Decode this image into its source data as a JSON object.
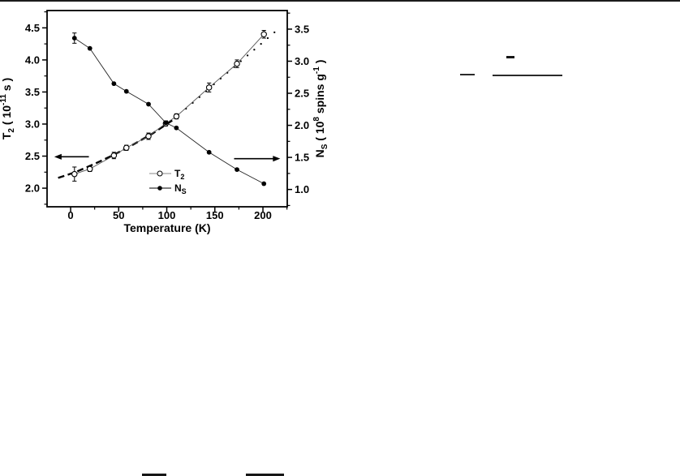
{
  "page": {
    "background": "#ffffff",
    "top_border_color": "#1b1b1b",
    "ink_color": "#000000",
    "t2_line_color": "#555555",
    "ns_line_color": "#222222"
  },
  "chart_data": {
    "type": "line",
    "title": "",
    "grid": false,
    "legend_position": "lower-center-inside",
    "x_axis": {
      "label": "Temperature (K)",
      "ticks": [
        0,
        50,
        100,
        150,
        200
      ],
      "minor_step": 25,
      "lim": [
        -24.5,
        225.3
      ]
    },
    "left_axis": {
      "label_parts": [
        {
          "t": "T",
          "s": "b"
        },
        {
          "t": "2",
          "s": "sub"
        },
        {
          "t": " ( 10",
          "s": "b"
        },
        {
          "t": "-11",
          "s": "sup"
        },
        {
          "t": " s )",
          "s": "b"
        }
      ],
      "label_plain": "T2 ( 10^-11 s )",
      "ticks": [
        4.5,
        4.0,
        3.5,
        3.0,
        2.5,
        2.0
      ],
      "minor_step": 0.25,
      "lim": [
        1.71,
        4.77
      ]
    },
    "right_axis": {
      "label_parts": [
        {
          "t": "N",
          "s": "b"
        },
        {
          "t": "S",
          "s": "sub"
        },
        {
          "t": " ( 10",
          "s": "b"
        },
        {
          "t": "8",
          "s": "sup"
        },
        {
          "t": " spins g",
          "s": "b"
        },
        {
          "t": "-1",
          "s": "sup"
        },
        {
          "t": " )",
          "s": "b"
        }
      ],
      "label_plain": "NS ( 10^8 spins g^-1 )",
      "ticks": [
        3.5,
        3.0,
        2.5,
        2.0,
        1.5,
        1.0
      ],
      "minor_step": 0.25,
      "lim": [
        0.73,
        3.79
      ]
    },
    "series": [
      {
        "name": "T2",
        "axis": "left",
        "marker": "open-circle",
        "x": [
          4,
          20,
          45,
          58,
          81,
          99,
          110,
          144,
          173,
          201
        ],
        "y": [
          2.22,
          2.3,
          2.51,
          2.63,
          2.81,
          3.01,
          3.12,
          3.57,
          3.94,
          4.4
        ],
        "err": [
          0.11,
          0.04,
          0.05,
          0.04,
          0.05,
          0.04,
          0.04,
          0.07,
          0.06,
          0.06
        ]
      },
      {
        "name": "NS",
        "axis": "right",
        "marker": "filled-circle",
        "x": [
          4,
          20,
          45,
          58,
          81,
          99,
          110,
          144,
          173,
          201
        ],
        "y": [
          3.36,
          3.2,
          2.65,
          2.53,
          2.33,
          2.04,
          1.96,
          1.58,
          1.31,
          1.09
        ],
        "err": [
          0.08,
          0,
          0,
          0,
          0,
          0,
          0,
          0,
          0,
          0
        ]
      }
    ],
    "fits": [
      {
        "name": "T2-dashed-fit",
        "style": "dashed",
        "axis": "left",
        "x": [
          -13,
          5,
          25,
          45,
          65,
          85,
          106
        ],
        "y": [
          2.16,
          2.25,
          2.38,
          2.52,
          2.68,
          2.85,
          3.06
        ]
      },
      {
        "name": "T2-dotted-fit",
        "style": "dotted",
        "axis": "left",
        "x": [
          112,
          120,
          127,
          134,
          141,
          149,
          156,
          163,
          170,
          177,
          184,
          191,
          198,
          205,
          212
        ],
        "y": [
          3.14,
          3.24,
          3.33,
          3.42,
          3.51,
          3.62,
          3.71,
          3.8,
          3.89,
          3.98,
          4.07,
          4.16,
          4.25,
          4.34,
          4.43
        ]
      }
    ],
    "annotations": [
      {
        "type": "arrow",
        "direction": "left",
        "axis": "left",
        "value": 2.49,
        "x_from": 19,
        "x_to": -17
      },
      {
        "type": "arrow",
        "direction": "right",
        "axis": "right",
        "value": 1.48,
        "x_from": 170,
        "x_to": 218
      }
    ],
    "legend": {
      "items": [
        {
          "parts": [
            {
              "t": "T",
              "s": "b"
            },
            {
              "t": "2",
              "s": "sub"
            }
          ],
          "plain": "T2",
          "marker": "open-circle",
          "line_color": "#888888"
        },
        {
          "parts": [
            {
              "t": "N",
              "s": "b"
            },
            {
              "t": "S",
              "s": "sub"
            }
          ],
          "plain": "NS",
          "marker": "filled-circle",
          "line_color": "#000000"
        }
      ]
    }
  }
}
